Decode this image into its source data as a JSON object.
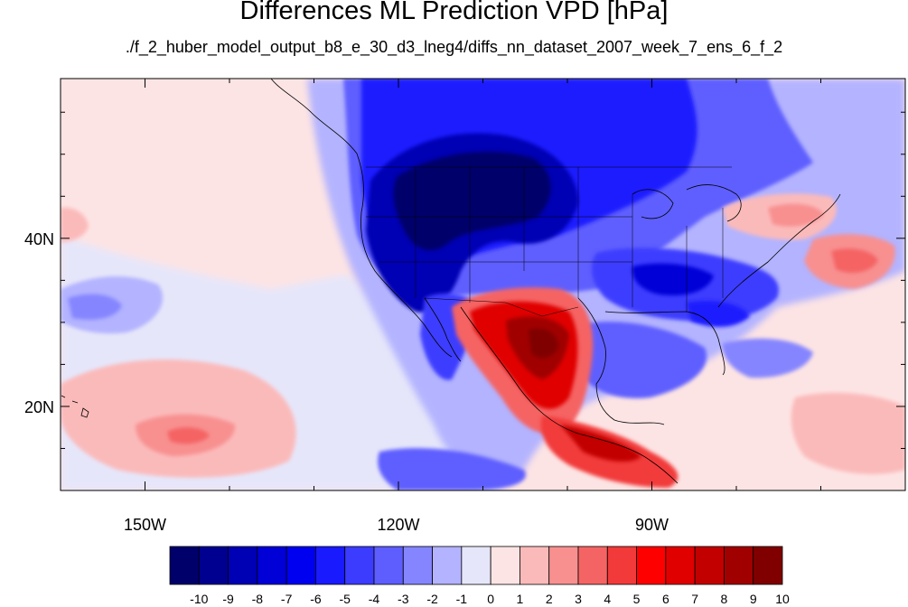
{
  "title": "Differences ML Prediction VPD [hPa]",
  "subtitle": "./f_2_huber_model_output_b8_e_30_d3_lneg4/diffs_nn_dataset_2007_week_7_ens_6_f_2",
  "map": {
    "lon_range": [
      -160,
      -60
    ],
    "lat_range": [
      10,
      59
    ],
    "lon_ticks": [
      {
        "lon": -150,
        "label": "150W"
      },
      {
        "lon": -120,
        "label": "120W"
      },
      {
        "lon": -90,
        "label": "90W"
      }
    ],
    "lat_ticks": [
      {
        "lat": 40,
        "label": "40N"
      },
      {
        "lat": 20,
        "label": "20N"
      }
    ]
  },
  "colorbar": {
    "labels": [
      "-10",
      "-9",
      "-8",
      "-7",
      "-6",
      "-5",
      "-4",
      "-3",
      "-2",
      "-1",
      "0",
      "1",
      "2",
      "3",
      "4",
      "5",
      "6",
      "7",
      "8",
      "9",
      "10"
    ],
    "colors": [
      "#00006b",
      "#000090",
      "#0000b4",
      "#0000d7",
      "#0000f0",
      "#1a1aff",
      "#3c3cff",
      "#5e5eff",
      "#8585ff",
      "#b3b3ff",
      "#e6e6fa",
      "#fde4e4",
      "#fbbaba",
      "#f89090",
      "#f56464",
      "#f23a3a",
      "#ff0000",
      "#e00000",
      "#c20000",
      "#a00000",
      "#800000"
    ]
  },
  "regions": [
    {
      "name": "northwest-strong-negative-anomaly",
      "value": -10
    },
    {
      "name": "north-plains-negative-anomaly",
      "value": -7
    },
    {
      "name": "canada-negative-anomaly",
      "value": -5
    },
    {
      "name": "southeast-negative-anomaly",
      "value": -5
    },
    {
      "name": "mexico-positive-anomaly",
      "value": 9
    },
    {
      "name": "northeast-positive-anomaly",
      "value": 3
    },
    {
      "name": "atlantic-positive-anomaly",
      "value": 4
    },
    {
      "name": "pacific-positive-anomaly",
      "value": 4
    },
    {
      "name": "central-america-positive-anomaly",
      "value": 6
    },
    {
      "name": "pacific-negative-anomaly",
      "value": -3
    }
  ]
}
